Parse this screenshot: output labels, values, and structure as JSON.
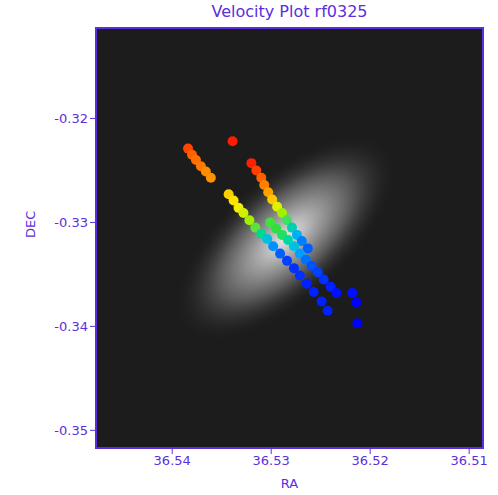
{
  "chart_data": {
    "type": "scatter",
    "title": "Velocity Plot rf0325",
    "x_label": "RA",
    "y_label": "DEC",
    "xlim": [
      36.5477,
      36.5086
    ],
    "ylim": [
      -0.3517,
      -0.3113
    ],
    "xticks": [
      36.54,
      36.53,
      36.52,
      36.51
    ],
    "yticks": [
      -0.35,
      -0.34,
      -0.33,
      -0.32
    ],
    "marker": "circle",
    "x": [
      36.5384,
      36.538,
      36.5376,
      36.5371,
      36.5366,
      36.5361,
      36.5339,
      36.5343,
      36.5338,
      36.5333,
      36.5328,
      36.5322,
      36.5316,
      36.531,
      36.5304,
      36.5298,
      36.5291,
      36.5284,
      36.5277,
      36.532,
      36.5315,
      36.531,
      36.5307,
      36.5303,
      36.5299,
      36.5294,
      36.5289,
      36.5284,
      36.5279,
      36.5274,
      36.5269,
      36.5263,
      36.5301,
      36.5295,
      36.5289,
      36.5283,
      36.5277,
      36.5271,
      36.5265,
      36.5259,
      36.5253,
      36.5247,
      36.524,
      36.5234,
      36.5271,
      36.5264,
      36.5257,
      36.5249,
      36.5243,
      36.5218,
      36.5214,
      36.5213
    ],
    "values": [
      -0.3229,
      -0.3235,
      -0.324,
      -0.3246,
      -0.3251,
      -0.3257,
      -0.3222,
      -0.3273,
      -0.3279,
      -0.3286,
      -0.3291,
      -0.3298,
      -0.3305,
      -0.3311,
      -0.3316,
      -0.3323,
      -0.333,
      -0.3337,
      -0.3344,
      -0.3243,
      -0.325,
      -0.3257,
      -0.3264,
      -0.3271,
      -0.3278,
      -0.3285,
      -0.3291,
      -0.3298,
      -0.3305,
      -0.3312,
      -0.3318,
      -0.3325,
      -0.33,
      -0.3306,
      -0.3312,
      -0.3317,
      -0.3323,
      -0.333,
      -0.3336,
      -0.3342,
      -0.3348,
      -0.3355,
      -0.3362,
      -0.3368,
      -0.3351,
      -0.3359,
      -0.3367,
      -0.3376,
      -0.3385,
      -0.3368,
      -0.3377,
      -0.3397
    ],
    "colors": [
      "#ff4500",
      "#ff6000",
      "#ff7000",
      "#ff7800",
      "#ff8c00",
      "#ff9000",
      "#ff1a00",
      "#ffd000",
      "#ffe000",
      "#f0f000",
      "#d0f000",
      "#a0f000",
      "#60e040",
      "#00d890",
      "#00c0e0",
      "#0090ff",
      "#0060ff",
      "#0040ff",
      "#0030ff",
      "#ff2000",
      "#ff4000",
      "#ff6000",
      "#ff8000",
      "#ffa000",
      "#ffc800",
      "#e0f000",
      "#a0f000",
      "#40e060",
      "#00d0b0",
      "#00b0f0",
      "#0080ff",
      "#0060ff",
      "#40e040",
      "#30e040",
      "#20e060",
      "#00d8a0",
      "#00c0e0",
      "#00a0ff",
      "#0070ff",
      "#0050ff",
      "#0040ff",
      "#0030ff",
      "#0020ff",
      "#0010ff",
      "#0030ff",
      "#0020ff",
      "#0020ff",
      "#0020ff",
      "#0020ff",
      "#0010ff",
      "#0000ff",
      "#0000ff"
    ]
  }
}
